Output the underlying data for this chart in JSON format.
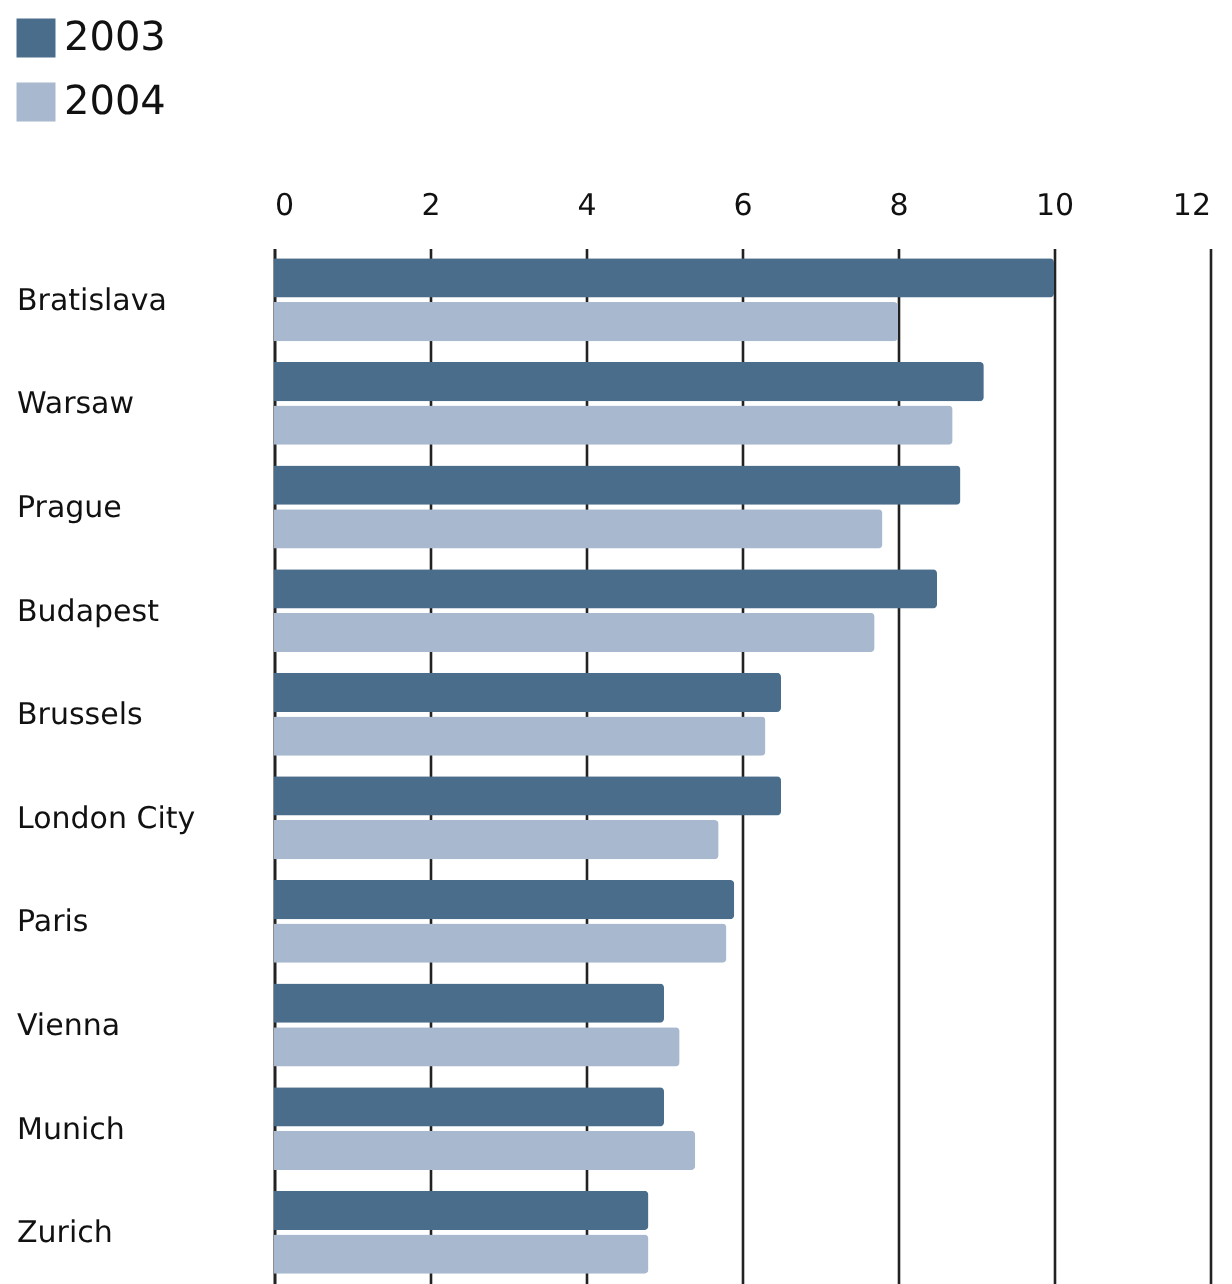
{
  "chart_data": {
    "type": "bar",
    "orientation": "horizontal",
    "categories": [
      "Bratislava",
      "Warsaw",
      "Prague",
      "Budapest",
      "Brussels",
      "London City",
      "Paris",
      "Vienna",
      "Munich",
      "Zurich"
    ],
    "series": [
      {
        "name": "2003",
        "color": "#4a6d8c",
        "values": [
          10.0,
          9.1,
          8.8,
          8.5,
          6.5,
          6.5,
          5.9,
          5.0,
          5.0,
          4.8
        ]
      },
      {
        "name": "2004",
        "color": "#a8b8cf",
        "values": [
          8.0,
          8.7,
          7.8,
          7.7,
          6.3,
          5.7,
          5.8,
          5.2,
          5.4,
          4.8
        ]
      }
    ],
    "xlim": [
      0,
      12
    ],
    "xticks": [
      0,
      2,
      4,
      6,
      8,
      10,
      12
    ],
    "grid": "x",
    "legend": "top left"
  }
}
